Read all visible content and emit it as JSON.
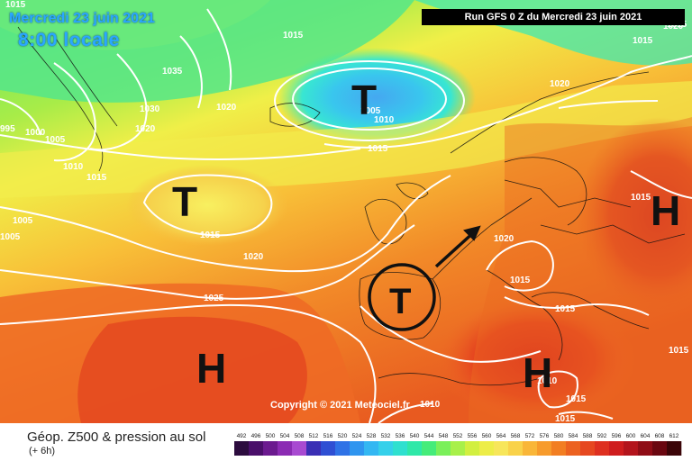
{
  "header": {
    "date": "Mercredi 23 juin 2021",
    "time": "8:00 locale",
    "run": "Run GFS 0 Z du Mercredi 23 juin 2021"
  },
  "copyright": "Copyright © 2021 Meteociel.fr",
  "footer": {
    "title": "Géop. Z500 & pression au sol",
    "subtitle": "(+ 6h)"
  },
  "symbols": {
    "low_iceland": "T",
    "low_atlantic": "T",
    "low_iberia": "T",
    "high_atlantic": "H",
    "high_mediterranean": "H",
    "high_east": "H"
  },
  "isobar_labels": [
    "1015",
    "1015",
    "1015",
    "1035",
    "1030",
    "1020",
    "1020",
    "995",
    "1000",
    "1005",
    "1010",
    "1015",
    "1005",
    "1010",
    "1015",
    "1005",
    "1005",
    "1015",
    "1020",
    "1025",
    "1020",
    "1015",
    "1020",
    "1015",
    "1015",
    "1015",
    "1010",
    "1015",
    "1015",
    "1010",
    "1020",
    "1015"
  ],
  "legend": {
    "values": [
      "492",
      "496",
      "500",
      "504",
      "508",
      "512",
      "516",
      "520",
      "524",
      "528",
      "532",
      "536",
      "540",
      "544",
      "548",
      "552",
      "556",
      "560",
      "564",
      "568",
      "572",
      "576",
      "580",
      "584",
      "588",
      "592",
      "596",
      "600",
      "604",
      "608",
      "612"
    ],
    "colors": [
      "#2c0c3e",
      "#4a0f6a",
      "#6b1a8f",
      "#8b2bb3",
      "#a84ad1",
      "#3a2fb5",
      "#2f4fd3",
      "#2f72e6",
      "#2f95ef",
      "#33b7f2",
      "#35d0ea",
      "#2fe0cf",
      "#2fe8a8",
      "#45ec7a",
      "#7af05a",
      "#a8f04a",
      "#d2ef40",
      "#eded48",
      "#f7e65a",
      "#f9d24a",
      "#f9b638",
      "#f79b2c",
      "#f27e22",
      "#ec6220",
      "#e64820",
      "#de3020",
      "#cf1d1e",
      "#b3141c",
      "#8f0d16",
      "#6a0710",
      "#3b0508"
    ]
  },
  "colors": {
    "title_blue": "#2aa7ff",
    "banner_bg": "#000000",
    "banner_text": "#ffffff"
  }
}
